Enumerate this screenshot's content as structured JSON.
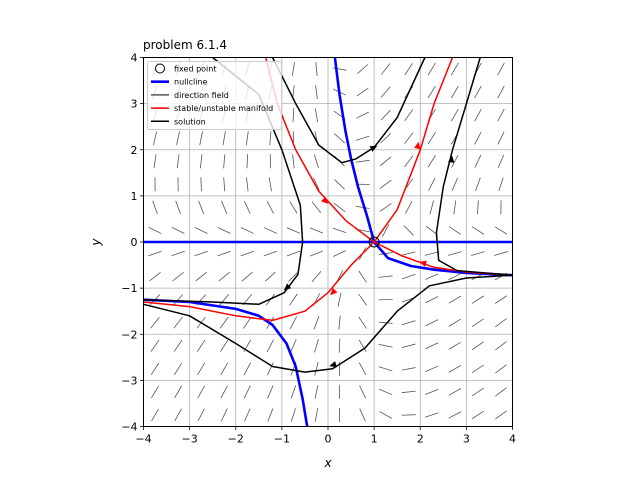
{
  "chart_data": {
    "type": "line",
    "title": "problem 6.1.4",
    "xlabel": "x",
    "ylabel": "y",
    "xlim": [
      -4,
      4
    ],
    "ylim": [
      -4,
      4
    ],
    "xticks": [
      -4,
      -3,
      -2,
      -1,
      0,
      1,
      2,
      3,
      4
    ],
    "yticks": [
      -4,
      -3,
      -2,
      -1,
      0,
      1,
      2,
      3,
      4
    ],
    "grid": true,
    "legend_position": "top-left",
    "legend": [
      {
        "label": "fixed point",
        "kind": "marker",
        "color": "#000000"
      },
      {
        "label": "nullcline",
        "kind": "line",
        "color": "#0000ff"
      },
      {
        "label": "direction field",
        "kind": "line",
        "color": "#555555"
      },
      {
        "label": "stable/unstable manifold",
        "kind": "line",
        "color": "#ff0000"
      },
      {
        "label": "solution",
        "kind": "line",
        "color": "#000000"
      }
    ],
    "fixed_points": [
      {
        "x": 1,
        "y": 0
      }
    ],
    "nullclines": [
      {
        "name": "y=0",
        "points": [
          [
            -4,
            0
          ],
          [
            4,
            0
          ]
        ]
      },
      {
        "name": "upper branch",
        "points": [
          [
            0.15,
            4.0
          ],
          [
            0.25,
            3.2
          ],
          [
            0.38,
            2.4
          ],
          [
            0.5,
            1.8
          ],
          [
            0.65,
            1.2
          ],
          [
            0.85,
            0.55
          ],
          [
            1.0,
            0.0
          ],
          [
            1.3,
            -0.35
          ],
          [
            1.8,
            -0.52
          ],
          [
            2.3,
            -0.6
          ],
          [
            3.0,
            -0.67
          ],
          [
            4.0,
            -0.72
          ]
        ]
      },
      {
        "name": "lower branch",
        "points": [
          [
            -4.0,
            -1.25
          ],
          [
            -3.0,
            -1.3
          ],
          [
            -2.0,
            -1.45
          ],
          [
            -1.5,
            -1.6
          ],
          [
            -1.2,
            -1.8
          ],
          [
            -0.9,
            -2.2
          ],
          [
            -0.7,
            -2.7
          ],
          [
            -0.55,
            -3.4
          ],
          [
            -0.45,
            -4.0
          ]
        ]
      }
    ],
    "manifolds": [
      {
        "name": "stable upper",
        "points": [
          [
            -1.35,
            4.0
          ],
          [
            -1.1,
            3.0
          ],
          [
            -0.7,
            2.0
          ],
          [
            -0.2,
            1.1
          ],
          [
            0.4,
            0.45
          ],
          [
            1.0,
            0.0
          ]
        ]
      },
      {
        "name": "stable lower",
        "points": [
          [
            4.0,
            -0.72
          ],
          [
            3.0,
            -0.65
          ],
          [
            2.3,
            -0.55
          ],
          [
            1.6,
            -0.3
          ],
          [
            1.0,
            0.0
          ]
        ]
      },
      {
        "name": "unstable upper",
        "points": [
          [
            1.0,
            0.0
          ],
          [
            1.5,
            0.7
          ],
          [
            2.0,
            2.0
          ],
          [
            2.3,
            3.0
          ],
          [
            2.7,
            4.0
          ]
        ]
      },
      {
        "name": "unstable lower",
        "points": [
          [
            1.0,
            0.0
          ],
          [
            0.5,
            -0.5
          ],
          [
            0.0,
            -1.1
          ],
          [
            -0.5,
            -1.5
          ],
          [
            -1.2,
            -1.7
          ],
          [
            -2.0,
            -1.6
          ],
          [
            -3.0,
            -1.4
          ],
          [
            -4.0,
            -1.3
          ]
        ]
      }
    ],
    "manifold_arrows": [
      {
        "x": -0.05,
        "y": 0.88,
        "dx": 0.3,
        "dy": -0.3
      },
      {
        "x": 2.05,
        "y": -0.45,
        "dx": -0.4,
        "dy": 0.12
      },
      {
        "x": 1.95,
        "y": 2.1,
        "dx": 0.08,
        "dy": 0.4
      },
      {
        "x": 0.1,
        "y": -1.1,
        "dx": -0.3,
        "dy": -0.3
      }
    ],
    "solutions": [
      {
        "name": "upper",
        "points": [
          [
            -1.2,
            4.0
          ],
          [
            -0.7,
            3.0
          ],
          [
            -0.2,
            2.1
          ],
          [
            0.3,
            1.72
          ],
          [
            0.6,
            1.8
          ],
          [
            1.0,
            2.05
          ],
          [
            1.5,
            2.7
          ],
          [
            2.1,
            4.0
          ]
        ]
      },
      {
        "name": "left",
        "points": [
          [
            -2.5,
            4.0
          ],
          [
            -1.5,
            3.2
          ],
          [
            -1.0,
            2.0
          ],
          [
            -0.6,
            0.8
          ],
          [
            -0.55,
            0.0
          ],
          [
            -0.65,
            -0.7
          ],
          [
            -0.95,
            -1.1
          ],
          [
            -1.5,
            -1.35
          ],
          [
            -2.5,
            -1.3
          ],
          [
            -4.0,
            -1.25
          ]
        ]
      },
      {
        "name": "right",
        "points": [
          [
            3.3,
            4.0
          ],
          [
            3.0,
            3.0
          ],
          [
            2.7,
            2.0
          ],
          [
            2.5,
            1.2
          ],
          [
            2.35,
            0.2
          ],
          [
            2.4,
            -0.4
          ],
          [
            2.8,
            -0.62
          ],
          [
            4.0,
            -0.72
          ]
        ]
      },
      {
        "name": "lower",
        "points": [
          [
            -4.0,
            -1.35
          ],
          [
            -3.0,
            -1.6
          ],
          [
            -2.0,
            -2.2
          ],
          [
            -1.2,
            -2.7
          ],
          [
            -0.5,
            -2.82
          ],
          [
            0.1,
            -2.75
          ],
          [
            0.8,
            -2.3
          ],
          [
            1.5,
            -1.5
          ],
          [
            2.2,
            -0.95
          ],
          [
            3.0,
            -0.78
          ],
          [
            4.0,
            -0.72
          ]
        ]
      }
    ],
    "solution_arrows": [
      {
        "x": 1.0,
        "y": 2.05,
        "dx": 0.3,
        "dy": 0.15
      },
      {
        "x": -0.9,
        "y": -1.0,
        "dx": -0.3,
        "dy": -0.25
      },
      {
        "x": 2.68,
        "y": 1.8,
        "dx": 0.05,
        "dy": 0.4
      },
      {
        "x": 0.1,
        "y": -2.67,
        "dx": -0.35,
        "dy": -0.1
      }
    ],
    "direction_field": {
      "x_range": [
        -3.75,
        3.75
      ],
      "y_range": [
        -3.75,
        3.75
      ],
      "count": 16
    }
  }
}
